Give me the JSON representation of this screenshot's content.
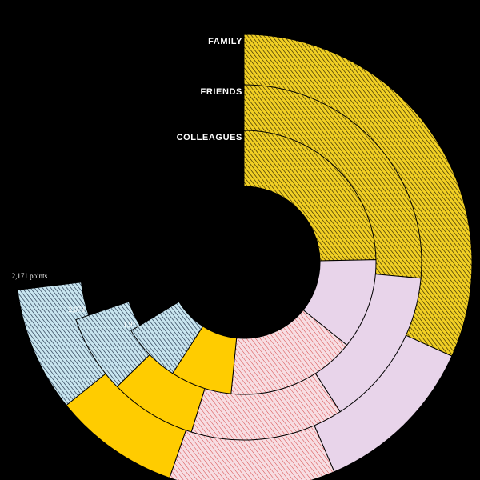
{
  "chart_data": {
    "type": "radial-stacked-bar",
    "start_angle_deg": 0,
    "rings": [
      {
        "name": "FAMILY",
        "total_label": "2,171 points",
        "total": 2171,
        "segments": [
          {
            "category": "yellow-hatched",
            "value": 943
          },
          {
            "category": "pink",
            "value": 350
          },
          {
            "category": "red-hatched",
            "value": 350
          },
          {
            "category": "yellow",
            "value": 265
          },
          {
            "category": "blue-hatched",
            "value": 263
          }
        ]
      },
      {
        "name": "FRIENDS",
        "total_label": "2,073",
        "total": 2073,
        "segments": [
          {
            "category": "yellow-hatched",
            "value": 785
          },
          {
            "category": "pink",
            "value": 430
          },
          {
            "category": "red-hatched",
            "value": 413
          },
          {
            "category": "yellow",
            "value": 234
          },
          {
            "category": "blue-hatched",
            "value": 211
          }
        ]
      },
      {
        "name": "COLLEAGUES",
        "total_label": "1,971",
        "total": 1971,
        "segments": [
          {
            "category": "yellow-hatched",
            "value": 733
          },
          {
            "category": "pink",
            "value": 330
          },
          {
            "category": "red-hatched",
            "value": 469
          },
          {
            "category": "yellow",
            "value": 224
          },
          {
            "category": "blue-hatched",
            "value": 215
          }
        ]
      }
    ],
    "scale_max": 2971,
    "colors": {
      "background": "#000000",
      "yellow": "#ffcc00",
      "yellow-hatched": "#f2d024",
      "pink": "#e8d4ea",
      "red-hatched": "#f5d7de",
      "blue-hatched": "#c9e6f0",
      "hatch-yellow": "#2a2000",
      "hatch-red": "#d64747",
      "hatch-blue": "#1a2a44",
      "label": "#ffffff"
    }
  }
}
